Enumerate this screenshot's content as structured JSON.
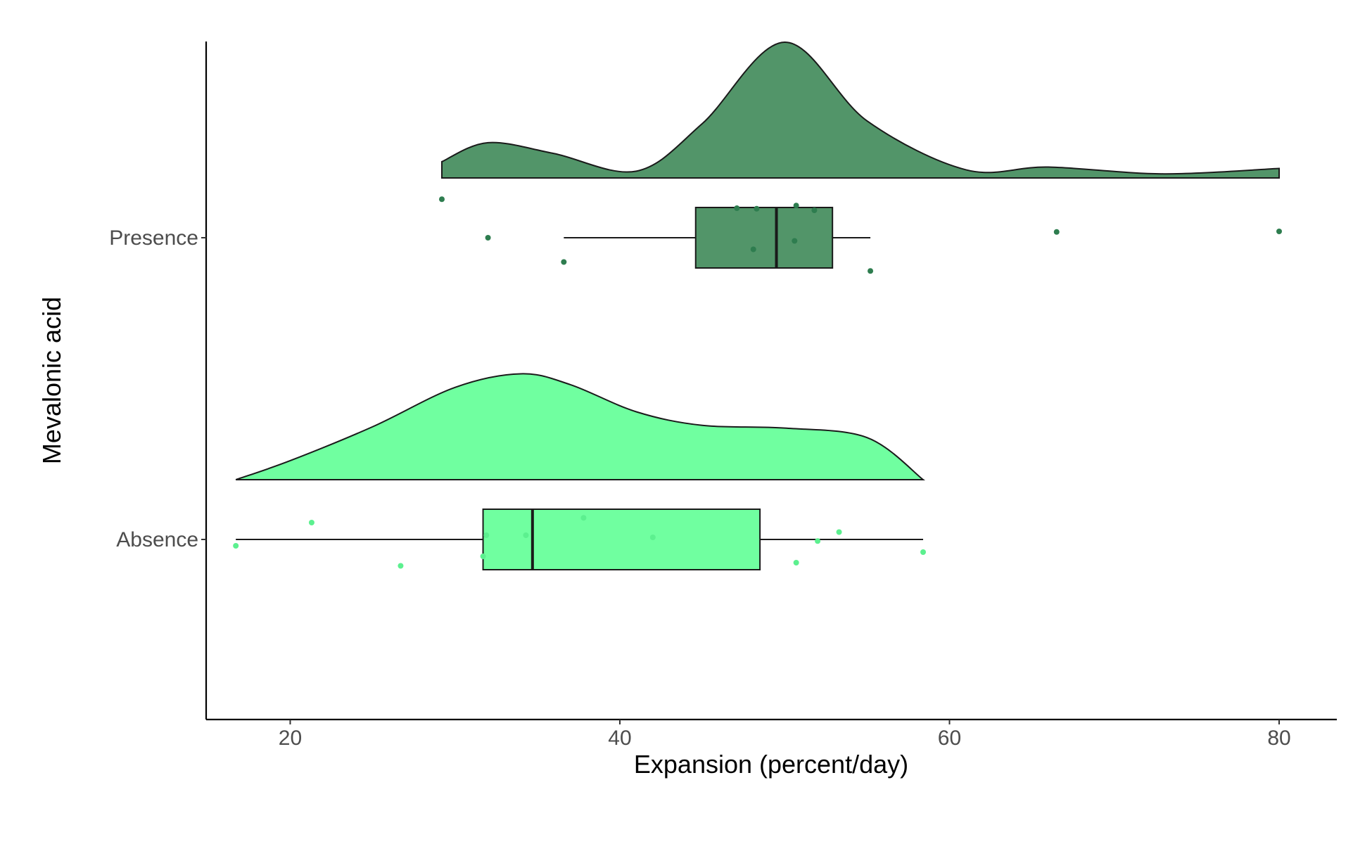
{
  "chart_data": {
    "type": "raincloud",
    "xlabel": "Expansion (percent/day)",
    "ylabel": "Mevalonic acid",
    "xlim": [
      14.9,
      83.5
    ],
    "x_ticks": [
      20,
      40,
      60,
      80
    ],
    "grid": false,
    "legend": "none",
    "categories": [
      "Absence",
      "Presence"
    ],
    "groups": [
      {
        "category": "Absence",
        "color": "#70FFA0",
        "density": {
          "x": [
            16.7,
            20,
            25,
            30,
            34,
            37,
            41,
            45,
            50,
            55,
            58.4
          ],
          "rel": [
            0.0,
            0.14,
            0.39,
            0.68,
            0.78,
            0.7,
            0.5,
            0.4,
            0.38,
            0.31,
            0.0
          ]
        },
        "box": {
          "whisker_low": 16.7,
          "q1": 31.7,
          "median": 34.7,
          "q3": 48.5,
          "whisker_high": 58.4
        },
        "points": [
          {
            "x": 16.7,
            "jitter": -0.12
          },
          {
            "x": 21.3,
            "jitter": 0.32
          },
          {
            "x": 26.7,
            "jitter": -0.5
          },
          {
            "x": 31.7,
            "jitter": -0.32
          },
          {
            "x": 31.9,
            "jitter": 0.08
          },
          {
            "x": 34.3,
            "jitter": 0.08
          },
          {
            "x": 37.8,
            "jitter": 0.41
          },
          {
            "x": 42.0,
            "jitter": 0.04
          },
          {
            "x": 50.7,
            "jitter": -0.44
          },
          {
            "x": 52.0,
            "jitter": -0.03
          },
          {
            "x": 53.3,
            "jitter": 0.14
          },
          {
            "x": 58.4,
            "jitter": -0.24
          }
        ]
      },
      {
        "category": "Presence",
        "color": "#529569",
        "density": {
          "x": [
            29.2,
            32,
            36,
            41,
            45,
            50,
            55,
            61,
            66,
            73,
            80.0
          ],
          "rel": [
            0.12,
            0.26,
            0.18,
            0.05,
            0.4,
            1.0,
            0.42,
            0.06,
            0.08,
            0.03,
            0.07
          ]
        },
        "box": {
          "whisker_low": 36.6,
          "q1": 44.6,
          "median": 49.5,
          "q3": 52.9,
          "whisker_high": 55.2
        },
        "points": [
          {
            "x": 29.2,
            "jitter": 0.73
          },
          {
            "x": 32.0,
            "jitter": 0.0
          },
          {
            "x": 36.6,
            "jitter": -0.46
          },
          {
            "x": 47.1,
            "jitter": 0.56
          },
          {
            "x": 48.1,
            "jitter": -0.22
          },
          {
            "x": 48.3,
            "jitter": 0.55
          },
          {
            "x": 50.6,
            "jitter": -0.06
          },
          {
            "x": 50.7,
            "jitter": 0.61
          },
          {
            "x": 51.8,
            "jitter": 0.52
          },
          {
            "x": 55.2,
            "jitter": -0.63
          },
          {
            "x": 66.5,
            "jitter": 0.11
          },
          {
            "x": 80.0,
            "jitter": 0.12
          }
        ]
      }
    ]
  }
}
